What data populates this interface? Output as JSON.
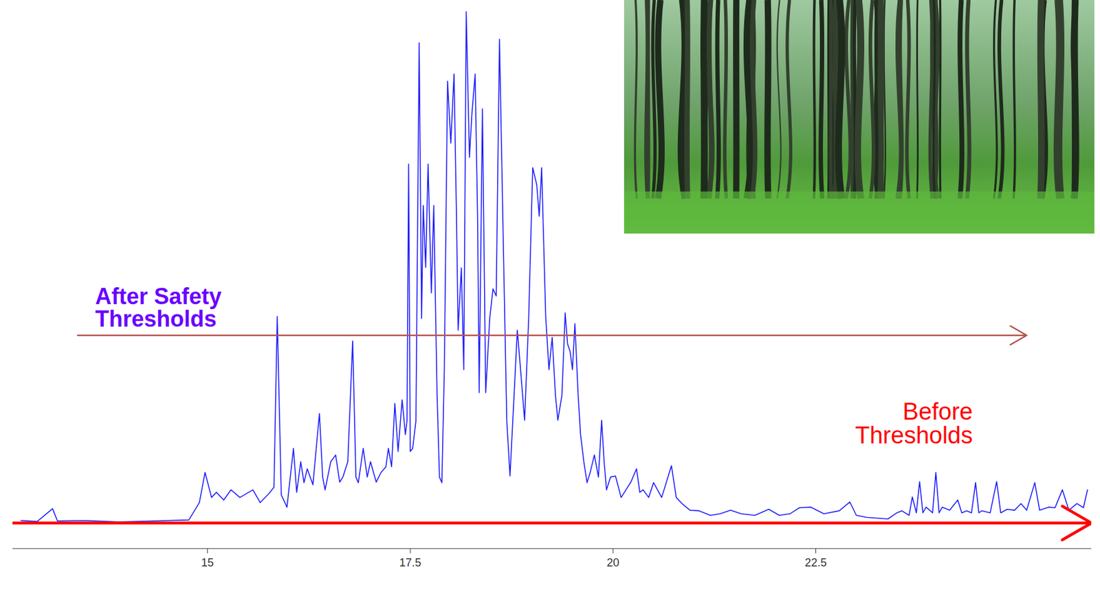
{
  "chart_data": {
    "type": "line",
    "color": "#1f1fff",
    "tick_labels": "x",
    "grid": false,
    "xlim": [
      12.6,
      25.9
    ],
    "xticks": [
      15,
      17.5,
      20,
      22.5
    ],
    "ylim": [
      -5,
      101
    ],
    "x": [
      12.7,
      12.9,
      13.09,
      13.15,
      13.48,
      13.91,
      14.34,
      14.77,
      14.9,
      14.97,
      15.05,
      15.11,
      15.2,
      15.29,
      15.4,
      15.56,
      15.65,
      15.76,
      15.82,
      15.86,
      15.91,
      15.98,
      16.06,
      16.1,
      16.15,
      16.19,
      16.23,
      16.3,
      16.38,
      16.42,
      16.45,
      16.52,
      16.58,
      16.63,
      16.67,
      16.73,
      16.79,
      16.83,
      16.86,
      16.92,
      16.97,
      17.01,
      17.08,
      17.14,
      17.2,
      17.23,
      17.27,
      17.31,
      17.35,
      17.4,
      17.44,
      17.46,
      17.48,
      17.5,
      17.53,
      17.57,
      17.61,
      17.64,
      17.66,
      17.69,
      17.72,
      17.76,
      17.79,
      17.83,
      17.86,
      17.89,
      17.92,
      17.96,
      18.0,
      18.04,
      18.07,
      18.09,
      18.13,
      18.16,
      18.19,
      18.23,
      18.26,
      18.3,
      18.33,
      18.35,
      18.39,
      18.43,
      18.48,
      18.52,
      18.56,
      18.6,
      18.65,
      18.69,
      18.73,
      18.78,
      18.82,
      18.86,
      18.91,
      18.96,
      19.01,
      19.06,
      19.09,
      19.12,
      19.17,
      19.21,
      19.25,
      19.29,
      19.32,
      19.37,
      19.41,
      19.44,
      19.47,
      19.5,
      19.53,
      19.57,
      19.6,
      19.64,
      19.68,
      19.72,
      19.77,
      19.82,
      19.86,
      19.89,
      19.92,
      19.97,
      20.03,
      20.1,
      20.16,
      20.22,
      20.29,
      20.33,
      20.37,
      20.44,
      20.5,
      20.6,
      20.72,
      20.78,
      20.85,
      20.95,
      21.06,
      21.2,
      21.32,
      21.45,
      21.58,
      21.75,
      21.92,
      22.05,
      22.18,
      22.3,
      22.44,
      22.6,
      22.79,
      22.92,
      23.0,
      23.13,
      23.39,
      23.5,
      23.56,
      23.65,
      23.69,
      23.74,
      23.78,
      23.82,
      23.86,
      23.94,
      23.98,
      24.02,
      24.06,
      24.15,
      24.25,
      24.3,
      24.36,
      24.42,
      24.47,
      24.51,
      24.55,
      24.65,
      24.73,
      24.78,
      24.86,
      24.95,
      25.03,
      25.1,
      25.2,
      25.26,
      25.37,
      25.45,
      25.54,
      25.62,
      25.72,
      25.8,
      25.85
    ],
    "values": [
      0.5,
      0.3,
      2.8,
      0.4,
      0.5,
      0.2,
      0.4,
      0.6,
      4.0,
      9.9,
      5.0,
      6.0,
      4.5,
      6.5,
      5.0,
      6.5,
      4.0,
      5.8,
      7.0,
      40.4,
      5.5,
      3.1,
      14.6,
      6.0,
      12.0,
      7.9,
      10.6,
      7.5,
      21.4,
      9.0,
      6.5,
      12.0,
      13.3,
      8.0,
      9.0,
      12.0,
      35.6,
      9.0,
      7.9,
      14.6,
      9.0,
      12.0,
      8.0,
      9.9,
      11.0,
      14.6,
      11.0,
      23.4,
      14.0,
      24.1,
      17.3,
      20.0,
      70.2,
      14.0,
      14.6,
      20.0,
      93.9,
      40.0,
      62.1,
      50.0,
      70.2,
      45.0,
      62.1,
      25.5,
      9.0,
      7.9,
      30.0,
      86.4,
      74.3,
      87.8,
      60.0,
      37.7,
      49.9,
      30.0,
      100,
      71.5,
      80.0,
      87.8,
      60.0,
      25.5,
      81.0,
      25.5,
      40.0,
      45.8,
      44.4,
      94.6,
      52.6,
      20.0,
      9.2,
      25.0,
      37.7,
      30.0,
      20.1,
      40.0,
      69.5,
      66.1,
      60.0,
      69.5,
      40.4,
      30.0,
      36.3,
      25.0,
      20.1,
      25.0,
      41.1,
      35.0,
      33.6,
      30.0,
      39.0,
      25.0,
      17.3,
      12.0,
      7.9,
      10.0,
      13.3,
      9.0,
      20.1,
      12.0,
      6.5,
      9.0,
      9.2,
      5.0,
      6.5,
      8.0,
      10.6,
      6.0,
      6.5,
      5.0,
      7.9,
      5.0,
      11.2,
      5.0,
      3.8,
      2.5,
      2.4,
      1.5,
      1.8,
      2.5,
      1.8,
      1.5,
      2.7,
      1.5,
      1.8,
      3.0,
      3.1,
      1.8,
      2.4,
      4.1,
      1.5,
      1.1,
      0.8,
      2.0,
      2.4,
      1.5,
      5.1,
      2.0,
      8.1,
      2.0,
      3.1,
      2.0,
      9.9,
      2.0,
      3.1,
      2.5,
      4.5,
      2.0,
      2.4,
      2.0,
      7.9,
      2.0,
      2.4,
      2.0,
      8.1,
      2.0,
      2.7,
      2.5,
      3.8,
      2.5,
      7.9,
      2.5,
      3.1,
      3.0,
      6.5,
      2.5,
      3.8,
      3.0,
      6.5
    ],
    "annotations": [
      {
        "text": "After Safety Thresholds",
        "color": "#6a00ff",
        "line_color": "#b5524c",
        "y": 36.7,
        "x_start": 13.4,
        "x_end": 25.1
      },
      {
        "text": "Before Thresholds",
        "color": "#ff0000",
        "line_color": "#ff0000",
        "y": 0,
        "x_start": 12.6,
        "x_end": 25.9
      }
    ]
  }
}
